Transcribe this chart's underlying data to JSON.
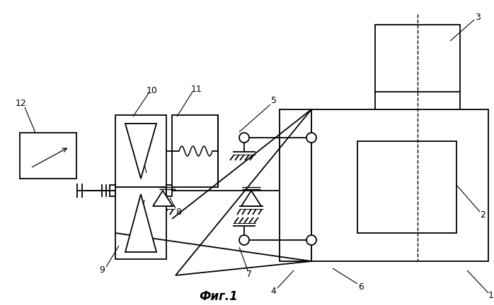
{
  "title": "Фиг.1",
  "bg": "#ffffff",
  "lc": "#000000",
  "lw": 1.3,
  "fig_w": 6.98,
  "fig_h": 4.32,
  "dpi": 100
}
